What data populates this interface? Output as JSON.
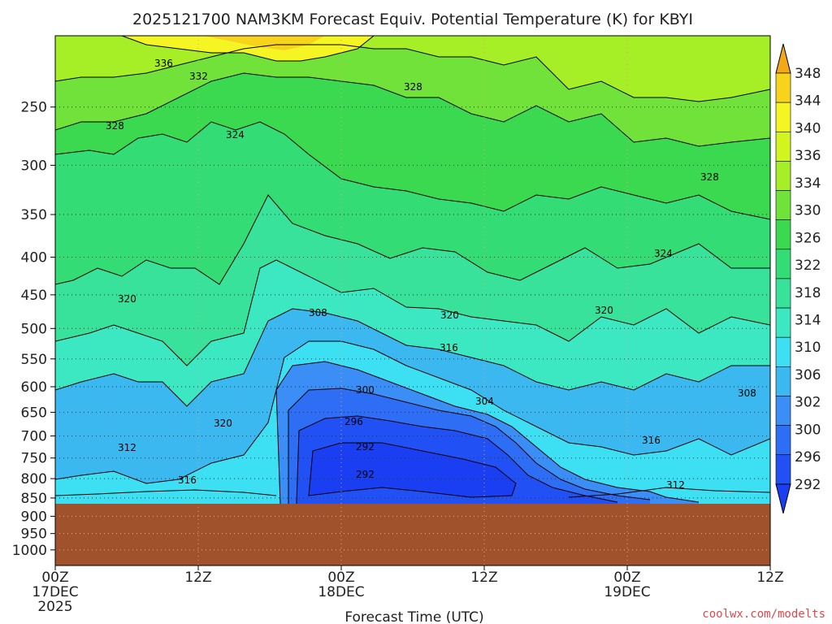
{
  "chart_data": {
    "type": "contour",
    "title": "2025121700 NAM3KM Forecast Equiv. Potential Temperature (K) for KBYI",
    "xlabel": "Forecast Time (UTC)",
    "ylabel": "",
    "x_ticks": [
      {
        "hour": 0,
        "lines": [
          "00Z",
          "17DEC",
          "2025"
        ]
      },
      {
        "hour": 12,
        "lines": [
          "12Z"
        ]
      },
      {
        "hour": 24,
        "lines": [
          "00Z",
          "18DEC"
        ]
      },
      {
        "hour": 36,
        "lines": [
          "12Z"
        ]
      },
      {
        "hour": 48,
        "lines": [
          "00Z",
          "19DEC"
        ]
      },
      {
        "hour": 60,
        "lines": [
          "12Z"
        ]
      }
    ],
    "xlim": [
      0,
      60
    ],
    "y_ticks": [
      250,
      300,
      350,
      400,
      450,
      500,
      550,
      600,
      650,
      700,
      750,
      800,
      850,
      900,
      950,
      1000
    ],
    "y_scale": "log-pressure",
    "ylim": [
      1050,
      200
    ],
    "ground_pressure": 870,
    "colorbar_levels": [
      292,
      296,
      300,
      302,
      306,
      310,
      314,
      318,
      322,
      326,
      330,
      334,
      336,
      340,
      344,
      348
    ],
    "colorbar_colors": [
      "#1a3ef2",
      "#2151f5",
      "#2d6ef5",
      "#3b8ef5",
      "#3cb8f0",
      "#3de0f2",
      "#3ce8c2",
      "#38e29a",
      "#34dc76",
      "#3bd950",
      "#70e23a",
      "#a6ee25",
      "#d2f520",
      "#f5f524",
      "#f7d31c",
      "#f4a817"
    ],
    "ground_color": "#a0522d",
    "contour_labels": [
      "336",
      "332",
      "328",
      "328",
      "324",
      "328",
      "324",
      "320",
      "320",
      "308",
      "320",
      "316",
      "300",
      "304",
      "296",
      "292",
      "292",
      "320",
      "312",
      "316",
      "316",
      "312",
      "308"
    ],
    "grid": true,
    "credit": "coolwx.com/modelts"
  }
}
